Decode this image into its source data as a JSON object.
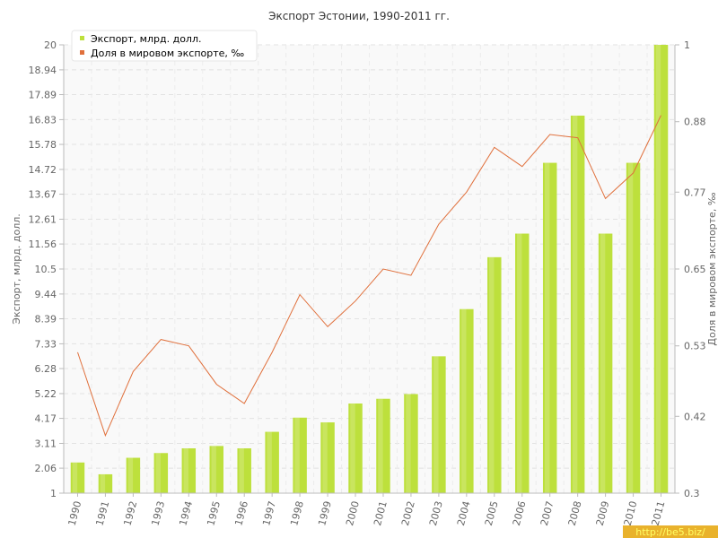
{
  "chart_data": {
    "type": "bar",
    "title": "Экспорт Эстонии, 1990-2011 гг.",
    "categories": [
      "1990",
      "1991",
      "1992",
      "1993",
      "1994",
      "1995",
      "1996",
      "1997",
      "1998",
      "1999",
      "2000",
      "2001",
      "2002",
      "2003",
      "2004",
      "2005",
      "2006",
      "2007",
      "2008",
      "2009",
      "2010",
      "2011"
    ],
    "series": [
      {
        "name": "Экспорт, млрд. долл.",
        "type": "bar",
        "axis": "left",
        "color": "#bde03c",
        "values": [
          2.3,
          1.8,
          2.5,
          2.7,
          2.9,
          3.0,
          2.9,
          3.6,
          4.2,
          4.0,
          4.8,
          5.0,
          5.2,
          6.8,
          8.8,
          11.0,
          12.0,
          15.0,
          17.0,
          12.0,
          15.0,
          20.0
        ]
      },
      {
        "name": "Доля в мировом экспорте, ‰",
        "type": "line",
        "axis": "right",
        "color": "#e0703c",
        "values": [
          0.52,
          0.39,
          0.49,
          0.54,
          0.53,
          0.47,
          0.44,
          0.52,
          0.61,
          0.56,
          0.6,
          0.65,
          0.64,
          0.72,
          0.77,
          0.84,
          0.81,
          0.86,
          0.855,
          0.76,
          0.8,
          0.89
        ]
      }
    ],
    "ylabel": "Экспорт, млрд. долл.",
    "ylabel_right": "Доля в мировом экспорте, ‰",
    "ylim": [
      1,
      20
    ],
    "ylim_right": [
      0.3,
      1
    ],
    "yticks": [
      "20",
      "18.94",
      "17.89",
      "16.83",
      "15.78",
      "14.72",
      "13.67",
      "12.61",
      "11.56",
      "10.5",
      "9.44",
      "8.39",
      "7.33",
      "6.28",
      "5.22",
      "4.17",
      "3.11",
      "2.06",
      "1"
    ],
    "yticks_right": [
      "1",
      "0.88",
      "0.77",
      "0.65",
      "0.53",
      "0.42",
      "0.3"
    ],
    "legend_position": "top-left",
    "grid": true
  },
  "watermark": "http://be5.biz/"
}
